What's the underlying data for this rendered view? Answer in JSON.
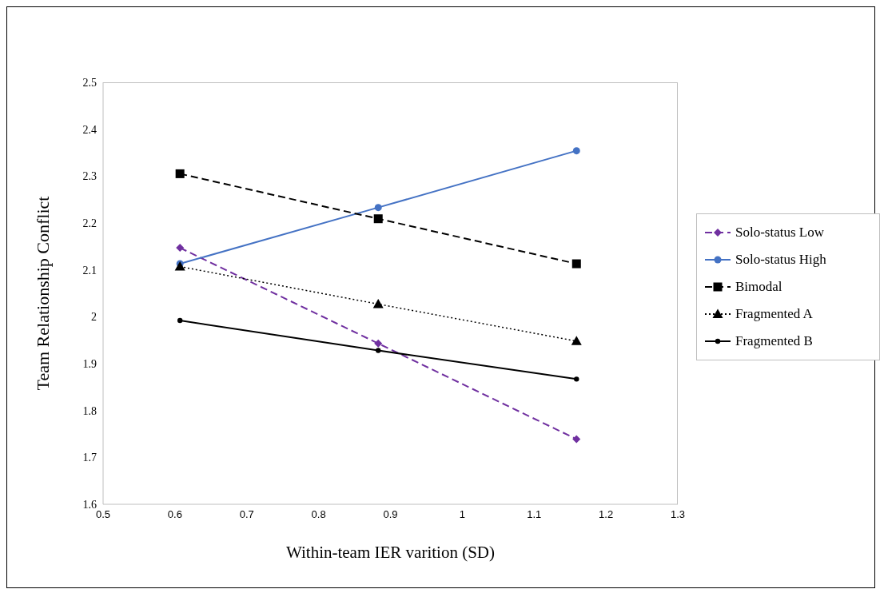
{
  "chart_data": {
    "type": "line",
    "xlabel": "Within-team IER varition (SD)",
    "ylabel": "Team Relationship Conflict",
    "x": [
      0.607,
      0.883,
      1.159
    ],
    "series": [
      {
        "name": "Solo-status Low",
        "color": "#7030a0",
        "marker": "diamond",
        "line_style": "dashed",
        "values": [
          2.147,
          1.943,
          1.739
        ]
      },
      {
        "name": "Solo-status High",
        "color": "#4472c4",
        "marker": "circle",
        "line_style": "solid",
        "values": [
          2.113,
          2.233,
          2.354
        ]
      },
      {
        "name": "Bimodal",
        "color": "#000000",
        "marker": "square",
        "line_style": "dashed",
        "values": [
          2.305,
          2.209,
          2.113
        ]
      },
      {
        "name": "Fragmented A",
        "color": "#000000",
        "marker": "triangle",
        "line_style": "dotted",
        "values": [
          2.107,
          2.027,
          1.948
        ]
      },
      {
        "name": "Fragmented B",
        "color": "#000000",
        "marker": "circle",
        "line_style": "solid",
        "values": [
          1.992,
          1.928,
          1.867
        ]
      }
    ],
    "xlim": [
      0.5,
      1.3
    ],
    "xticks": [
      0.5,
      0.6,
      0.7,
      0.8,
      0.9,
      1,
      1.1,
      1.2,
      1.3
    ],
    "ylim": [
      1.6,
      2.5
    ],
    "yticks": [
      1.6,
      1.7,
      1.8,
      1.9,
      2,
      2.1,
      2.2,
      2.3,
      2.4,
      2.5
    ],
    "grid": false,
    "legend": "right"
  }
}
